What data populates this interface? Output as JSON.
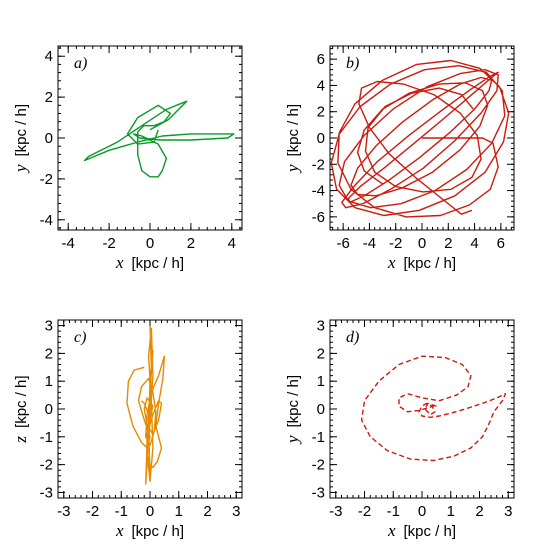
{
  "chart_data": [
    {
      "type": "line",
      "panel_label": "a)",
      "xlabel_var": "x",
      "xlabel_unit": "[kpc / h]",
      "ylabel_var": "y",
      "ylabel_unit": "[kpc / h]",
      "xlim": [
        -4.5,
        4.5
      ],
      "ylim": [
        -4.5,
        4.5
      ],
      "xticks": [
        -4,
        -2,
        0,
        2,
        4
      ],
      "yticks": [
        -4,
        -2,
        0,
        2,
        4
      ],
      "xtick_labels": [
        "-4",
        "-2",
        "0",
        "2",
        "4"
      ],
      "ytick_labels": [
        "-4",
        "-2",
        "0",
        "2",
        "4"
      ],
      "color": "#0a9a2a",
      "dashed": false,
      "series": [
        {
          "x": [
            0.0,
            0.9,
            1.8,
            0.8,
            -0.4,
            -1.6,
            -3.0,
            -3.2,
            -2.0,
            -0.6,
            0.6,
            2.0,
            3.4,
            4.1,
            3.8,
            2.0,
            0.5,
            -0.5,
            -0.8,
            -0.4,
            0.4,
            0.8,
            0.6,
            0.4,
            0.0,
            -0.4,
            -0.6,
            -0.6,
            -0.3,
            0.2,
            0.7,
            1.0,
            0.4,
            -0.6,
            -1.1,
            -0.6,
            0.2,
            0.4
          ],
          "y": [
            0.4,
            0.9,
            1.8,
            1.4,
            0.6,
            -0.2,
            -0.9,
            -1.1,
            -0.6,
            -0.2,
            0.1,
            0.2,
            0.2,
            0.2,
            0.0,
            -0.1,
            -0.1,
            0.0,
            0.2,
            0.1,
            -0.3,
            -1.0,
            -1.6,
            -1.9,
            -1.9,
            -1.6,
            -0.8,
            0.3,
            0.6,
            0.6,
            0.8,
            1.2,
            1.6,
            1.0,
            0.2,
            -0.3,
            -0.2,
            0.4
          ]
        }
      ]
    },
    {
      "type": "line",
      "panel_label": "b)",
      "xlabel_var": "x",
      "xlabel_unit": "[kpc / h]",
      "ylabel_var": "y",
      "ylabel_unit": "[kpc / h]",
      "xlim": [
        -7,
        7
      ],
      "ylim": [
        -7,
        7
      ],
      "xticks": [
        -6,
        -4,
        -2,
        0,
        2,
        4,
        6
      ],
      "yticks": [
        -6,
        -4,
        -2,
        0,
        2,
        4,
        6
      ],
      "xtick_labels": [
        "-6",
        "-4",
        "-2",
        "0",
        "2",
        "4",
        "6"
      ],
      "ytick_labels": [
        "-6",
        "-4",
        "-2",
        "0",
        "2",
        "4",
        "6"
      ],
      "color": "#cc1a0e",
      "dashed": false,
      "series": [
        {
          "x": [
            0.0,
            4.6,
            5.4,
            5.8,
            5.2,
            3.6,
            1.4,
            -1.2,
            -3.6,
            -5.4,
            -6.4,
            -6.3,
            -5.1,
            -3.0,
            -0.4,
            2.2,
            4.4,
            5.9,
            6.6,
            6.2,
            4.8,
            2.5,
            -0.2,
            -2.9,
            -5.1,
            -6.5,
            -6.9,
            -6.3,
            -4.7,
            -2.4,
            0.2,
            2.8,
            4.9,
            6.1,
            6.3,
            5.3,
            3.4,
            1.0,
            -1.6,
            -3.9,
            -5.6,
            -6.3,
            -5.9,
            -4.4,
            -2.2,
            0.4,
            2.9,
            4.8,
            5.8,
            5.7,
            4.5,
            2.5,
            0.1,
            -2.4,
            -4.5,
            -5.8,
            -6.1,
            -5.2,
            -3.4,
            -1.0,
            1.5,
            3.7,
            5.2,
            5.8,
            5.3,
            3.9,
            1.8,
            -0.6,
            -2.9,
            -4.7,
            -5.6,
            -5.5,
            -4.4,
            -2.5,
            -0.2,
            2.1,
            4.0,
            5.1,
            5.3,
            4.5,
            2.9,
            0.8,
            -1.5,
            -3.5,
            -4.9,
            -5.4,
            -4.9,
            -3.5,
            -1.5,
            0.8,
            2.9,
            4.4,
            5.0,
            4.6,
            3.3,
            1.3,
            -1.0,
            -3.0,
            -4.4,
            -4.9,
            -4.4,
            -3.0
          ],
          "y": [
            0.0,
            0.0,
            -0.4,
            -2.2,
            -3.9,
            -5.1,
            -5.9,
            -6.0,
            -5.3,
            -3.9,
            -1.9,
            0.4,
            2.6,
            4.4,
            5.6,
            5.9,
            5.3,
            3.9,
            1.9,
            -0.3,
            -2.6,
            -4.4,
            -5.5,
            -5.9,
            -5.3,
            -3.9,
            -1.9,
            0.3,
            2.4,
            4.1,
            5.2,
            5.5,
            5.0,
            3.6,
            1.7,
            -0.4,
            -2.4,
            -4.0,
            -5.0,
            -5.3,
            -4.8,
            -3.6,
            -1.8,
            0.2,
            2.2,
            3.9,
            4.9,
            5.2,
            4.8,
            3.6,
            1.9,
            -0.2,
            -2.3,
            -3.9,
            -5.0,
            -5.3,
            -4.9,
            -3.7,
            -1.8,
            0.2,
            2.1,
            3.7,
            4.7,
            5.0,
            4.6,
            3.4,
            1.6,
            -0.4,
            -2.3,
            -3.7,
            -4.6,
            -4.9,
            -4.4,
            -3.2,
            -1.5,
            0.4,
            2.2,
            3.6,
            4.4,
            4.6,
            4.1,
            2.9,
            1.2,
            -0.6,
            -2.3,
            -3.6,
            -4.3,
            -4.4,
            -3.8,
            -2.6,
            -0.9,
            0.9,
            2.5,
            3.6,
            4.2,
            4.1,
            3.4,
            2.2,
            0.6,
            -1.1,
            -2.5,
            -3.5
          ]
        },
        {
          "x": [
            3.8,
            3.0,
            1.5,
            -0.5,
            -2.5,
            -4.0,
            -4.8,
            -4.6,
            -3.4,
            -1.4,
            0.9,
            2.9,
            4.2,
            4.5,
            3.8,
            2.2,
            0.1,
            -2.0,
            -3.6,
            -4.3,
            -4.1,
            -2.8,
            -0.8,
            1.3,
            3.0,
            3.9
          ],
          "y": [
            -5.5,
            -5.8,
            -4.6,
            -3.0,
            -1.2,
            0.8,
            2.6,
            3.8,
            4.3,
            4.1,
            3.3,
            1.9,
            0.2,
            -1.6,
            -3.0,
            -3.9,
            -4.1,
            -3.7,
            -2.6,
            -1.0,
            0.8,
            2.4,
            3.4,
            3.8,
            3.3,
            2.2
          ]
        }
      ]
    },
    {
      "type": "line",
      "panel_label": "c)",
      "xlabel_var": "x",
      "xlabel_unit": "[kpc / h]",
      "ylabel_var": "z",
      "ylabel_unit": "[kpc / h]",
      "xlim": [
        -3.2,
        3.2
      ],
      "ylim": [
        -3.2,
        3.2
      ],
      "xticks": [
        -3,
        -2,
        -1,
        0,
        1,
        2,
        3
      ],
      "yticks": [
        -3,
        -2,
        -1,
        0,
        1,
        2,
        3
      ],
      "xtick_labels": [
        "-3",
        "-2",
        "-1",
        "0",
        "1",
        "2",
        "3"
      ],
      "ytick_labels": [
        "-3",
        "-2",
        "-1",
        "0",
        "1",
        "2",
        "3"
      ],
      "color": "#e68a00",
      "dashed": false,
      "series": [
        {
          "x": [
            0.0,
            0.05,
            0.0,
            -0.1,
            0.0,
            0.1,
            0.05,
            -0.05,
            0.05,
            0.1,
            0.0,
            -0.1,
            -0.15,
            -0.1,
            0.0,
            0.1,
            0.0,
            -0.05,
            0.0
          ],
          "y": [
            3.0,
            1.5,
            0.0,
            -1.6,
            -2.6,
            -1.4,
            0.2,
            1.9,
            2.9,
            1.2,
            -0.4,
            -1.9,
            -2.7,
            -1.2,
            0.6,
            2.1,
            1.0,
            -0.8,
            -2.3
          ]
        },
        {
          "x": [
            -0.2,
            -0.55,
            -0.75,
            -0.8,
            -0.6,
            -0.3,
            -0.1,
            0.0,
            -0.2,
            -0.4,
            -0.3,
            -0.05,
            0.1,
            0.2,
            0.15,
            0.0,
            -0.15,
            -0.1,
            0.05,
            0.3,
            0.5,
            0.45,
            0.3,
            0.2,
            0.3,
            0.4,
            0.25,
            0.1,
            0.0,
            -0.1,
            -0.1,
            0.1,
            0.3,
            0.4,
            0.3,
            0.1,
            -0.1,
            -0.2,
            -0.1,
            0.1,
            0.0,
            -0.2,
            -0.3
          ],
          "y": [
            1.5,
            1.4,
            1.0,
            0.2,
            -0.6,
            -1.2,
            -1.4,
            -1.0,
            -0.4,
            0.3,
            0.8,
            1.1,
            0.6,
            -0.1,
            -0.8,
            -1.3,
            -1.0,
            -0.2,
            0.6,
            1.2,
            1.9,
            1.1,
            0.2,
            -0.6,
            -1.0,
            -1.4,
            -1.9,
            -2.1,
            -2.0,
            -1.6,
            -0.9,
            -0.2,
            0.3,
            0.2,
            -0.4,
            -0.9,
            -0.6,
            0.0,
            0.4,
            0.1,
            -0.3,
            0.2,
            0.3
          ]
        }
      ]
    },
    {
      "type": "line",
      "panel_label": "d)",
      "xlabel_var": "x",
      "xlabel_unit": "[kpc / h]",
      "ylabel_var": "y",
      "ylabel_unit": "[kpc / h]",
      "xlim": [
        -3.2,
        3.2
      ],
      "ylim": [
        -3.2,
        3.2
      ],
      "xticks": [
        -3,
        -2,
        -1,
        0,
        1,
        2,
        3
      ],
      "yticks": [
        -3,
        -2,
        -1,
        0,
        1,
        2,
        3
      ],
      "xtick_labels": [
        "-3",
        "-2",
        "-1",
        "0",
        "1",
        "2",
        "3"
      ],
      "ytick_labels": [
        "-3",
        "-2",
        "-1",
        "0",
        "1",
        "2",
        "3"
      ],
      "color": "#cc1a0e",
      "dashed": true,
      "series": [
        {
          "x": [
            0.5,
            0.2,
            0.1,
            0.3,
            0.45,
            0.35,
            0.15,
            0.0,
            -0.1,
            0.0,
            0.3,
            0.6,
            1.0,
            1.5,
            2.1,
            2.6,
            2.9,
            2.8,
            2.5,
            2.3,
            2.1,
            1.7,
            1.1,
            0.4,
            -0.4,
            -1.2,
            -1.8,
            -2.1,
            -2.0,
            -1.5,
            -0.8,
            0.0,
            0.8,
            1.4,
            1.7,
            1.6,
            1.2,
            0.6,
            0.0,
            -0.5,
            -0.8,
            -0.8,
            -0.5,
            -0.1,
            0.4
          ],
          "y": [
            0.1,
            0.2,
            0.0,
            -0.2,
            -0.1,
            0.1,
            0.2,
            0.1,
            -0.1,
            -0.25,
            -0.3,
            -0.25,
            -0.15,
            0.0,
            0.2,
            0.4,
            0.55,
            0.3,
            -0.1,
            -0.6,
            -1.0,
            -1.4,
            -1.7,
            -1.85,
            -1.8,
            -1.5,
            -1.0,
            -0.4,
            0.3,
            1.0,
            1.6,
            1.9,
            1.85,
            1.6,
            1.2,
            0.8,
            0.5,
            0.3,
            0.4,
            0.55,
            0.4,
            0.1,
            -0.1,
            -0.05,
            0.1
          ]
        }
      ]
    }
  ]
}
